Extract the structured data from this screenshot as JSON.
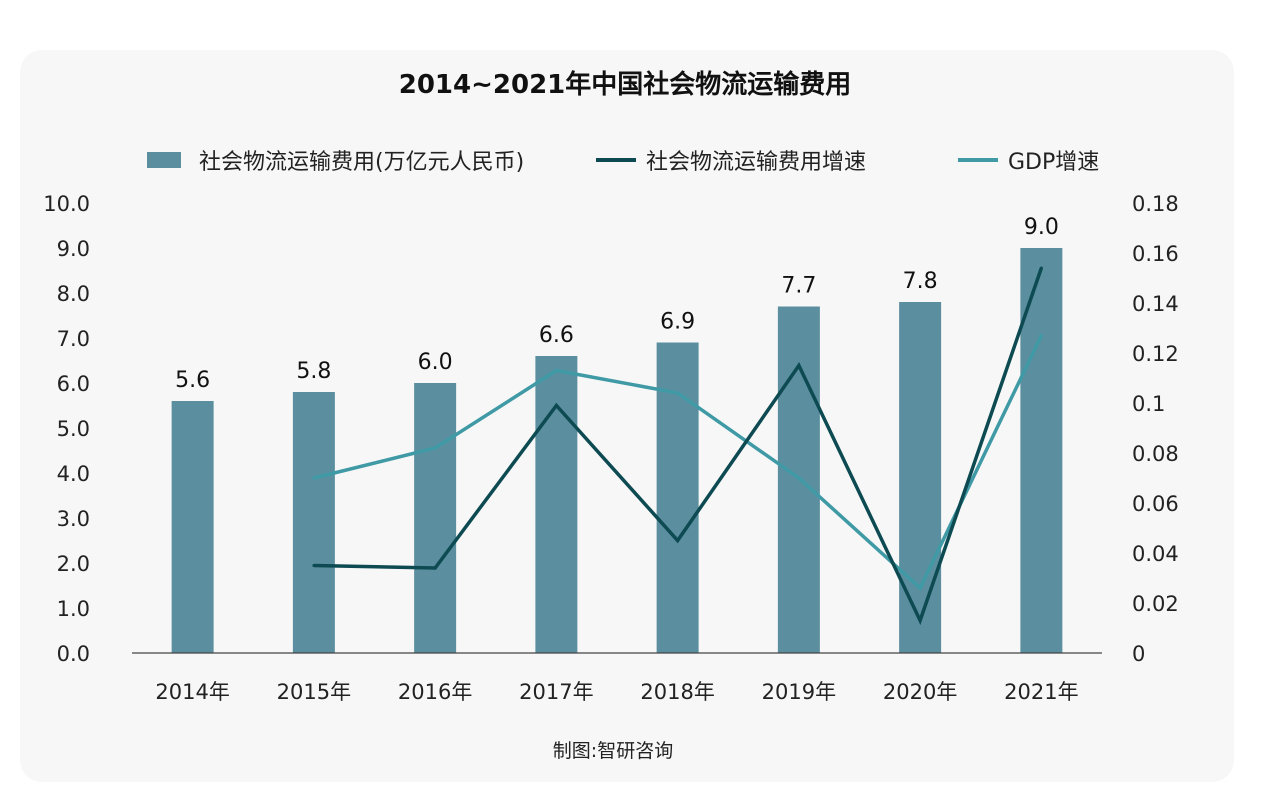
{
  "chart_data": {
    "type": "bar",
    "title": "2014~2021年中国社会物流运输费用",
    "categories": [
      "2014年",
      "2015年",
      "2016年",
      "2017年",
      "2018年",
      "2019年",
      "2020年",
      "2021年"
    ],
    "series": [
      {
        "name": "社会物流运输费用(万亿元人民币)",
        "type": "bar",
        "axis": "left",
        "color": "#5b8fa0",
        "values": [
          5.6,
          5.8,
          6.0,
          6.6,
          6.9,
          7.7,
          7.8,
          9.0
        ],
        "labels": [
          "5.6",
          "5.8",
          "6.0",
          "6.6",
          "6.9",
          "7.7",
          "7.8",
          "9.0"
        ]
      },
      {
        "name": "社会物流运输费用增速",
        "type": "line",
        "axis": "right",
        "color": "#0d4a52",
        "values": [
          null,
          0.035,
          0.034,
          0.099,
          0.045,
          0.115,
          0.013,
          0.154
        ]
      },
      {
        "name": "GDP增速",
        "type": "line",
        "axis": "right",
        "color": "#3f9aa6",
        "values": [
          null,
          0.07,
          0.082,
          0.113,
          0.104,
          0.07,
          0.026,
          0.127
        ]
      }
    ],
    "y_left": {
      "ylim": [
        0,
        10
      ],
      "ticks": [
        "0.0",
        "1.0",
        "2.0",
        "3.0",
        "4.0",
        "5.0",
        "6.0",
        "7.0",
        "8.0",
        "9.0",
        "10.0"
      ]
    },
    "y_right": {
      "ylim": [
        0,
        0.18
      ],
      "ticks": [
        "0",
        "0.02",
        "0.04",
        "0.06",
        "0.08",
        "0.1",
        "0.12",
        "0.14",
        "0.16",
        "0.18"
      ]
    },
    "grid": false,
    "legend_position": "top"
  },
  "source": "制图:智研咨询"
}
